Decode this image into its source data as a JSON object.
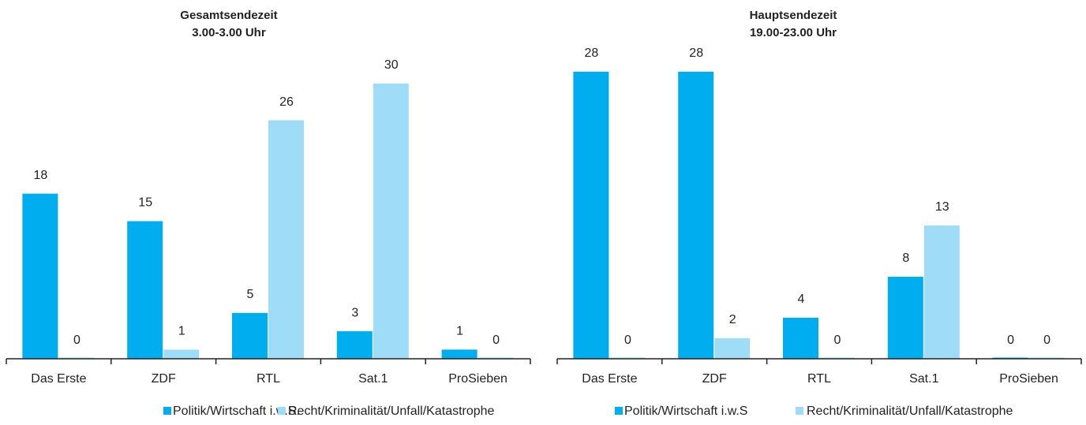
{
  "chart_data": [
    {
      "type": "bar",
      "title": "Gesamtsendezeit",
      "subtitle": "3.00-3.00 Uhr",
      "categories": [
        "Das Erste",
        "ZDF",
        "RTL",
        "Sat.1",
        "ProSieben"
      ],
      "series": [
        {
          "name": "Politik/Wirtschaft i.w.S.",
          "color": "#00aeef",
          "values": [
            18,
            15,
            5,
            3,
            1
          ]
        },
        {
          "name": "Recht/Kriminalität/Unfall/Katastrophe",
          "color": "#9fdcf7",
          "values": [
            0,
            1,
            26,
            30,
            0
          ]
        }
      ]
    },
    {
      "type": "bar",
      "title": "Hauptsendezeit",
      "subtitle": "19.00-23.00 Uhr",
      "categories": [
        "Das Erste",
        "ZDF",
        "RTL",
        "Sat.1",
        "ProSieben"
      ],
      "series": [
        {
          "name": "Politik/Wirtschaft i.w.S",
          "color": "#00aeef",
          "values": [
            28,
            28,
            4,
            8,
            0
          ]
        },
        {
          "name": "Recht/Kriminalität/Unfall/Katastrophe",
          "color": "#9fdcf7",
          "values": [
            0,
            2,
            0,
            13,
            0
          ]
        }
      ]
    }
  ]
}
